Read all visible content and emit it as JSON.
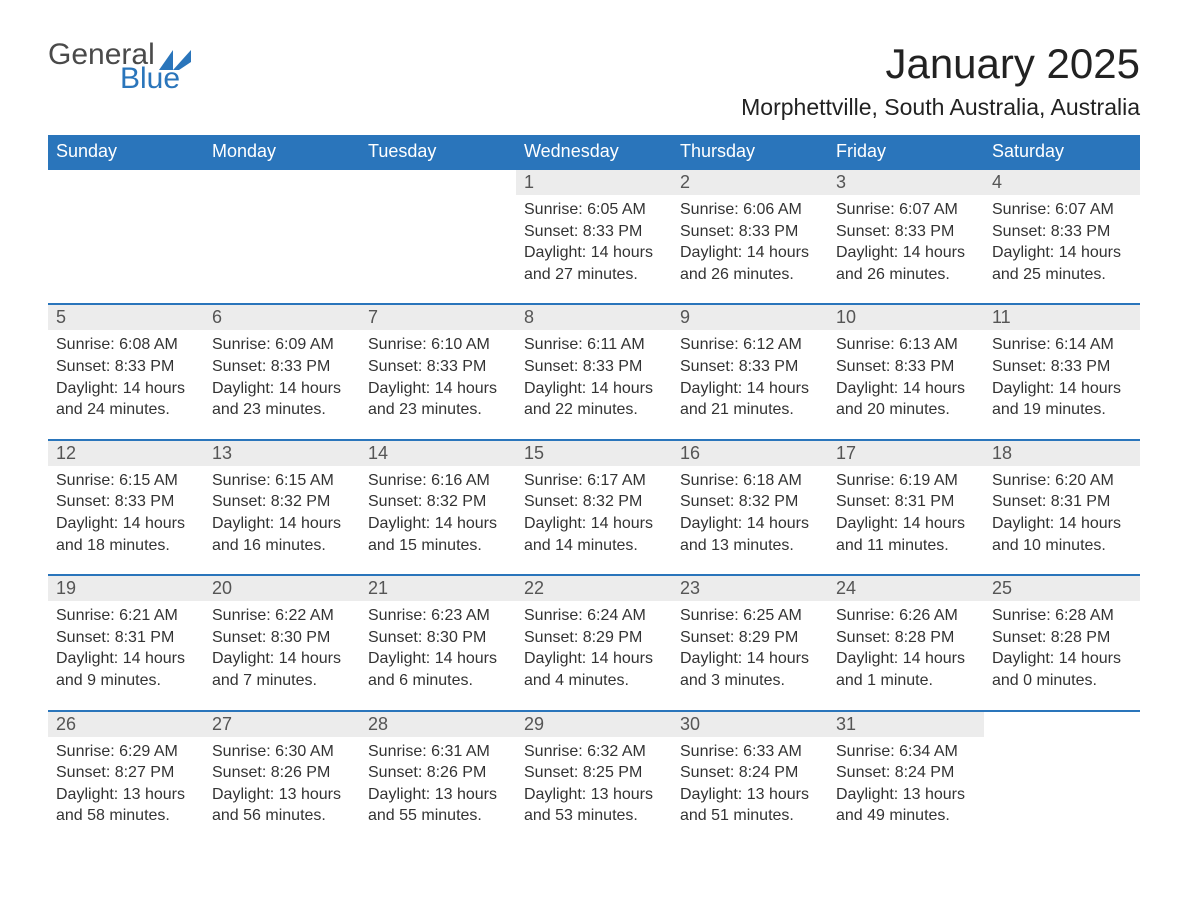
{
  "logo": {
    "word1": "General",
    "word2": "Blue",
    "accent_color": "#2a75bb",
    "text_color": "#4a4a4a"
  },
  "title": "January 2025",
  "location": "Morphettville, South Australia, Australia",
  "colors": {
    "header_bg": "#2a75bb",
    "header_fg": "#ffffff",
    "daynum_bg": "#ececec",
    "daynum_fg": "#555555",
    "body_fg": "#333333",
    "rule": "#2a75bb",
    "page_bg": "#ffffff"
  },
  "typography": {
    "title_fontsize": 42,
    "location_fontsize": 23,
    "header_fontsize": 18,
    "daynum_fontsize": 18,
    "cell_fontsize": 16
  },
  "weekday_labels": [
    "Sunday",
    "Monday",
    "Tuesday",
    "Wednesday",
    "Thursday",
    "Friday",
    "Saturday"
  ],
  "weeks": [
    [
      null,
      null,
      null,
      {
        "n": "1",
        "sunrise": "Sunrise: 6:05 AM",
        "sunset": "Sunset: 8:33 PM",
        "daylight": "Daylight: 14 hours and 27 minutes."
      },
      {
        "n": "2",
        "sunrise": "Sunrise: 6:06 AM",
        "sunset": "Sunset: 8:33 PM",
        "daylight": "Daylight: 14 hours and 26 minutes."
      },
      {
        "n": "3",
        "sunrise": "Sunrise: 6:07 AM",
        "sunset": "Sunset: 8:33 PM",
        "daylight": "Daylight: 14 hours and 26 minutes."
      },
      {
        "n": "4",
        "sunrise": "Sunrise: 6:07 AM",
        "sunset": "Sunset: 8:33 PM",
        "daylight": "Daylight: 14 hours and 25 minutes."
      }
    ],
    [
      {
        "n": "5",
        "sunrise": "Sunrise: 6:08 AM",
        "sunset": "Sunset: 8:33 PM",
        "daylight": "Daylight: 14 hours and 24 minutes."
      },
      {
        "n": "6",
        "sunrise": "Sunrise: 6:09 AM",
        "sunset": "Sunset: 8:33 PM",
        "daylight": "Daylight: 14 hours and 23 minutes."
      },
      {
        "n": "7",
        "sunrise": "Sunrise: 6:10 AM",
        "sunset": "Sunset: 8:33 PM",
        "daylight": "Daylight: 14 hours and 23 minutes."
      },
      {
        "n": "8",
        "sunrise": "Sunrise: 6:11 AM",
        "sunset": "Sunset: 8:33 PM",
        "daylight": "Daylight: 14 hours and 22 minutes."
      },
      {
        "n": "9",
        "sunrise": "Sunrise: 6:12 AM",
        "sunset": "Sunset: 8:33 PM",
        "daylight": "Daylight: 14 hours and 21 minutes."
      },
      {
        "n": "10",
        "sunrise": "Sunrise: 6:13 AM",
        "sunset": "Sunset: 8:33 PM",
        "daylight": "Daylight: 14 hours and 20 minutes."
      },
      {
        "n": "11",
        "sunrise": "Sunrise: 6:14 AM",
        "sunset": "Sunset: 8:33 PM",
        "daylight": "Daylight: 14 hours and 19 minutes."
      }
    ],
    [
      {
        "n": "12",
        "sunrise": "Sunrise: 6:15 AM",
        "sunset": "Sunset: 8:33 PM",
        "daylight": "Daylight: 14 hours and 18 minutes."
      },
      {
        "n": "13",
        "sunrise": "Sunrise: 6:15 AM",
        "sunset": "Sunset: 8:32 PM",
        "daylight": "Daylight: 14 hours and 16 minutes."
      },
      {
        "n": "14",
        "sunrise": "Sunrise: 6:16 AM",
        "sunset": "Sunset: 8:32 PM",
        "daylight": "Daylight: 14 hours and 15 minutes."
      },
      {
        "n": "15",
        "sunrise": "Sunrise: 6:17 AM",
        "sunset": "Sunset: 8:32 PM",
        "daylight": "Daylight: 14 hours and 14 minutes."
      },
      {
        "n": "16",
        "sunrise": "Sunrise: 6:18 AM",
        "sunset": "Sunset: 8:32 PM",
        "daylight": "Daylight: 14 hours and 13 minutes."
      },
      {
        "n": "17",
        "sunrise": "Sunrise: 6:19 AM",
        "sunset": "Sunset: 8:31 PM",
        "daylight": "Daylight: 14 hours and 11 minutes."
      },
      {
        "n": "18",
        "sunrise": "Sunrise: 6:20 AM",
        "sunset": "Sunset: 8:31 PM",
        "daylight": "Daylight: 14 hours and 10 minutes."
      }
    ],
    [
      {
        "n": "19",
        "sunrise": "Sunrise: 6:21 AM",
        "sunset": "Sunset: 8:31 PM",
        "daylight": "Daylight: 14 hours and 9 minutes."
      },
      {
        "n": "20",
        "sunrise": "Sunrise: 6:22 AM",
        "sunset": "Sunset: 8:30 PM",
        "daylight": "Daylight: 14 hours and 7 minutes."
      },
      {
        "n": "21",
        "sunrise": "Sunrise: 6:23 AM",
        "sunset": "Sunset: 8:30 PM",
        "daylight": "Daylight: 14 hours and 6 minutes."
      },
      {
        "n": "22",
        "sunrise": "Sunrise: 6:24 AM",
        "sunset": "Sunset: 8:29 PM",
        "daylight": "Daylight: 14 hours and 4 minutes."
      },
      {
        "n": "23",
        "sunrise": "Sunrise: 6:25 AM",
        "sunset": "Sunset: 8:29 PM",
        "daylight": "Daylight: 14 hours and 3 minutes."
      },
      {
        "n": "24",
        "sunrise": "Sunrise: 6:26 AM",
        "sunset": "Sunset: 8:28 PM",
        "daylight": "Daylight: 14 hours and 1 minute."
      },
      {
        "n": "25",
        "sunrise": "Sunrise: 6:28 AM",
        "sunset": "Sunset: 8:28 PM",
        "daylight": "Daylight: 14 hours and 0 minutes."
      }
    ],
    [
      {
        "n": "26",
        "sunrise": "Sunrise: 6:29 AM",
        "sunset": "Sunset: 8:27 PM",
        "daylight": "Daylight: 13 hours and 58 minutes."
      },
      {
        "n": "27",
        "sunrise": "Sunrise: 6:30 AM",
        "sunset": "Sunset: 8:26 PM",
        "daylight": "Daylight: 13 hours and 56 minutes."
      },
      {
        "n": "28",
        "sunrise": "Sunrise: 6:31 AM",
        "sunset": "Sunset: 8:26 PM",
        "daylight": "Daylight: 13 hours and 55 minutes."
      },
      {
        "n": "29",
        "sunrise": "Sunrise: 6:32 AM",
        "sunset": "Sunset: 8:25 PM",
        "daylight": "Daylight: 13 hours and 53 minutes."
      },
      {
        "n": "30",
        "sunrise": "Sunrise: 6:33 AM",
        "sunset": "Sunset: 8:24 PM",
        "daylight": "Daylight: 13 hours and 51 minutes."
      },
      {
        "n": "31",
        "sunrise": "Sunrise: 6:34 AM",
        "sunset": "Sunset: 8:24 PM",
        "daylight": "Daylight: 13 hours and 49 minutes."
      },
      null
    ]
  ]
}
